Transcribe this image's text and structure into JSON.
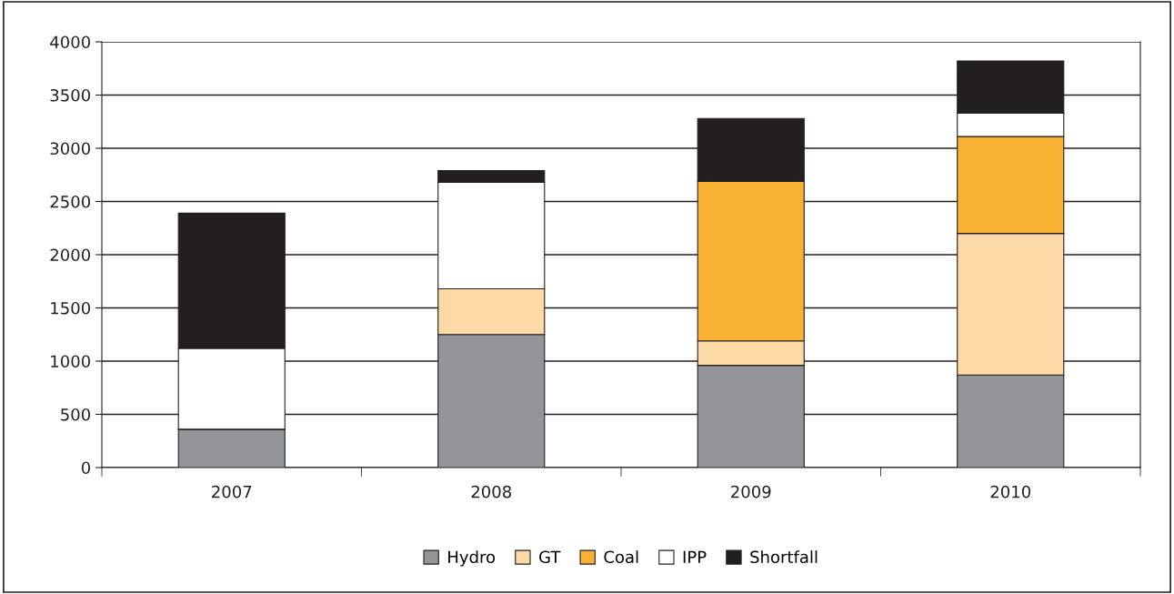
{
  "chart_data": {
    "type": "bar",
    "stacked": true,
    "categories": [
      "2007",
      "2008",
      "2009",
      "2010"
    ],
    "series": [
      {
        "name": "Hydro",
        "color": "#939598",
        "values": [
          360,
          1250,
          960,
          870
        ]
      },
      {
        "name": "GT",
        "color": "#fdd9a5",
        "values": [
          0,
          430,
          230,
          1330
        ]
      },
      {
        "name": "Coal",
        "color": "#f9b133",
        "values": [
          0,
          0,
          1500,
          910
        ]
      },
      {
        "name": "IPP",
        "color": "#ffffff",
        "values": [
          760,
          1000,
          0,
          220
        ]
      },
      {
        "name": "Shortfall",
        "color": "#231f20",
        "values": [
          1270,
          110,
          590,
          490
        ]
      }
    ],
    "ylim": [
      0,
      4000
    ],
    "yticks": [
      0,
      500,
      1000,
      1500,
      2000,
      2500,
      3000,
      3500,
      4000
    ],
    "grid": "y",
    "legend": "bottom"
  }
}
